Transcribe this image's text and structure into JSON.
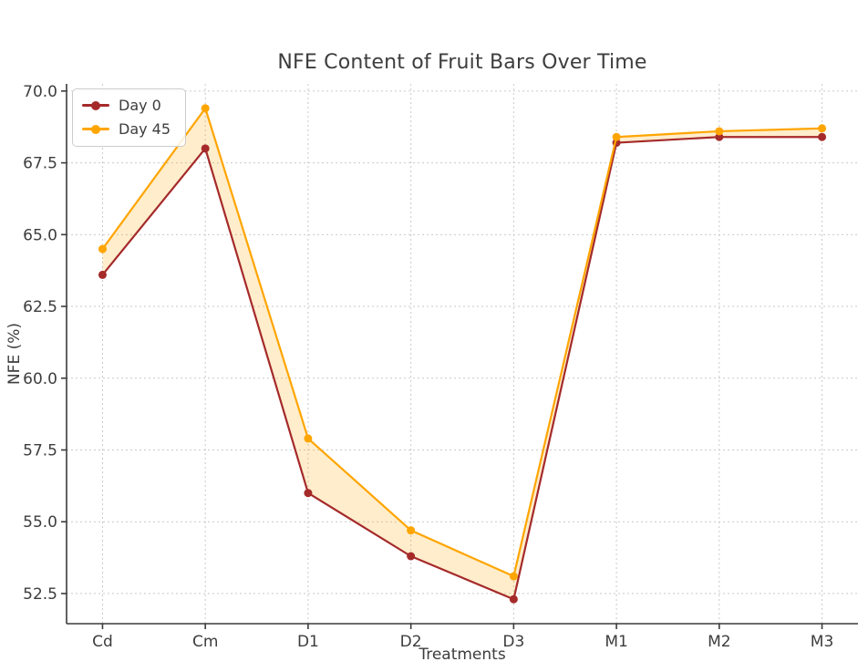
{
  "chart_data": {
    "type": "line",
    "title": "NFE Content of Fruit Bars Over Time",
    "xlabel": "Treatments",
    "ylabel": "NFE (%)",
    "categories": [
      "Cd",
      "Cm",
      "D1",
      "D2",
      "D3",
      "M1",
      "M2",
      "M3"
    ],
    "series": [
      {
        "name": "Day 0",
        "color": "#A52A2A",
        "values": [
          63.6,
          68.0,
          56.0,
          53.8,
          52.3,
          68.2,
          68.4,
          68.4
        ]
      },
      {
        "name": "Day 45",
        "color": "#FFA500",
        "values": [
          64.5,
          69.4,
          57.9,
          54.7,
          53.1,
          68.4,
          68.6,
          68.7
        ]
      }
    ],
    "fill_between": {
      "enabled": true,
      "color": "rgba(255,165,0,0.2)"
    },
    "yticks": [
      52.5,
      55.0,
      57.5,
      60.0,
      62.5,
      65.0,
      67.5,
      70.0
    ],
    "ytick_labels": [
      "52.5",
      "55.0",
      "57.5",
      "60.0",
      "62.5",
      "65.0",
      "67.5",
      "70.0"
    ],
    "ylim": [
      51.45,
      70.25
    ],
    "grid": true,
    "grid_style": "dashed",
    "legend_position": "upper-left",
    "axis_color": "#3b3b3b",
    "grid_color": "#c9c9c9",
    "text_color": "#3d3d3d",
    "marker": "circle",
    "marker_radius": 4.5,
    "line_width": 2.2
  }
}
